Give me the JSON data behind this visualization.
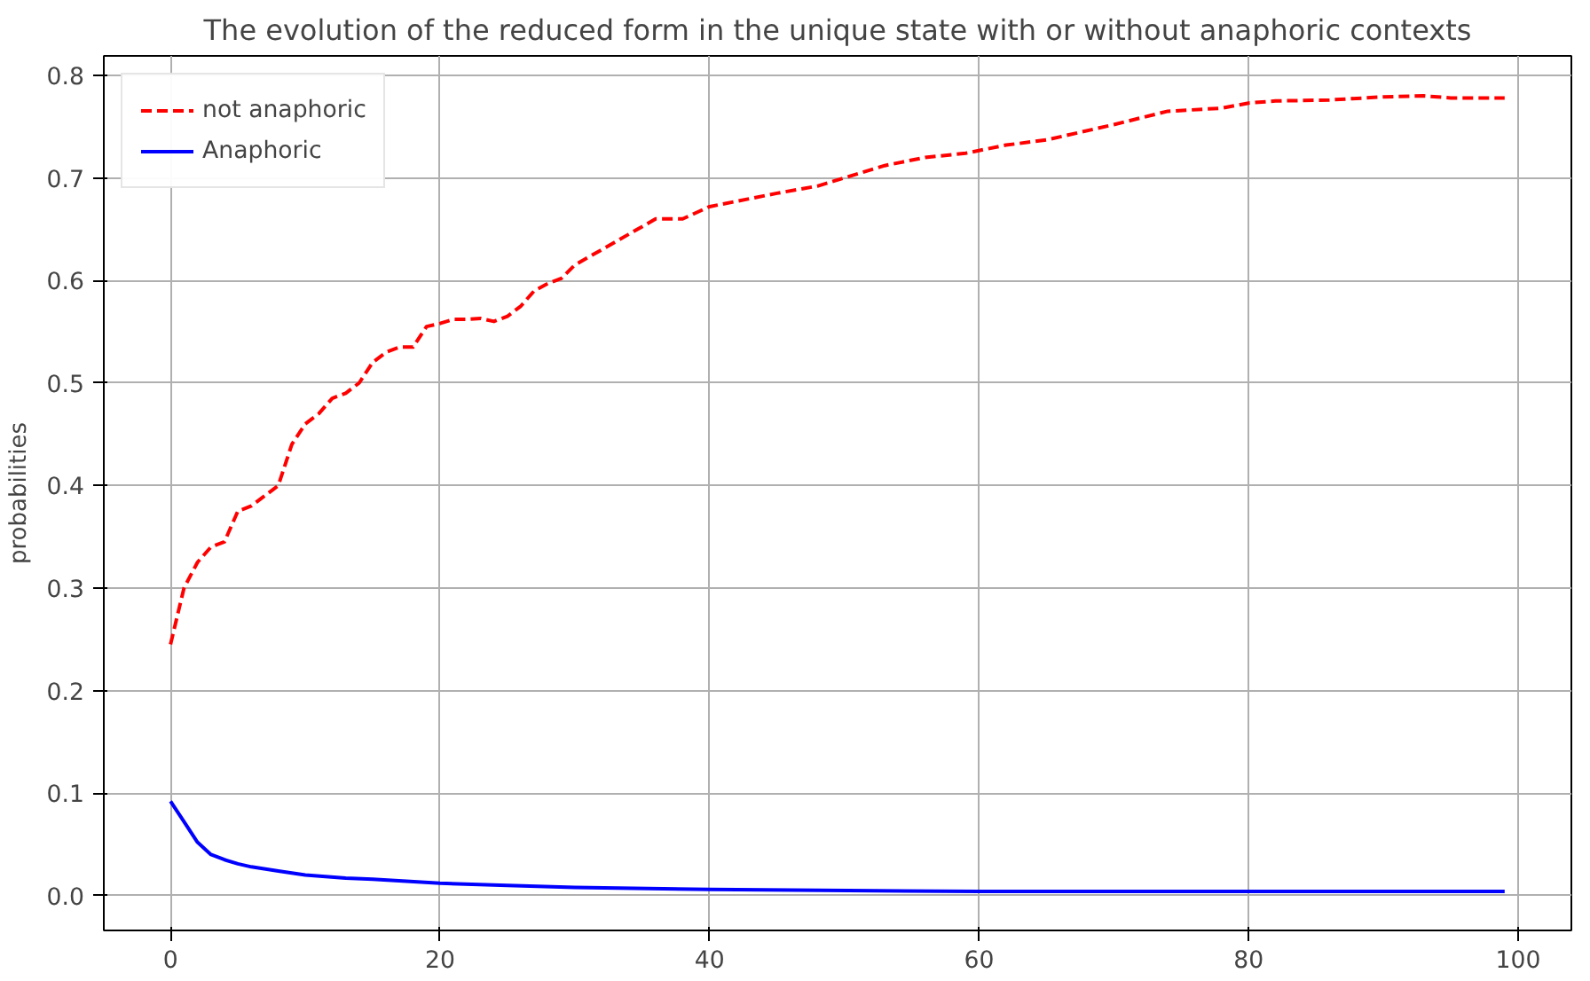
{
  "chart_data": {
    "type": "line",
    "title": "The evolution of the reduced form in the unique state with or without anaphoric contexts",
    "ylabel": "probabilities",
    "xlim": [
      -4.95,
      103.95
    ],
    "ylim": [
      -0.034,
      0.819
    ],
    "xticks": [
      0,
      20,
      40,
      60,
      80,
      100
    ],
    "yticks": [
      {
        "value": 0,
        "label": "0.0"
      },
      0.1,
      0.2,
      0.3,
      0.4,
      0.5,
      0.6,
      0.7,
      0.8
    ],
    "grid": true,
    "legend": "top left",
    "marker": "none",
    "series": [
      {
        "name": "not anaphoric",
        "color": "#ff0000",
        "line_style": "dashed",
        "x": [
          0,
          1,
          2,
          3,
          4,
          5,
          6,
          7,
          8,
          9,
          10,
          11,
          12,
          13,
          14,
          15,
          16,
          17,
          18,
          19,
          20,
          21,
          22,
          23,
          24,
          25,
          26,
          27,
          28,
          29,
          30,
          32,
          34,
          36,
          38,
          40,
          45,
          48,
          50,
          53,
          56,
          59,
          62,
          65,
          70,
          74,
          78,
          80,
          82,
          86,
          90,
          93,
          95,
          99
        ],
        "values": [
          0.245,
          0.3,
          0.325,
          0.34,
          0.345,
          0.375,
          0.38,
          0.39,
          0.4,
          0.44,
          0.46,
          0.47,
          0.485,
          0.49,
          0.5,
          0.52,
          0.53,
          0.535,
          0.535,
          0.555,
          0.558,
          0.562,
          0.562,
          0.563,
          0.56,
          0.565,
          0.575,
          0.59,
          0.597,
          0.602,
          0.615,
          0.63,
          0.645,
          0.66,
          0.66,
          0.672,
          0.685,
          0.692,
          0.7,
          0.712,
          0.72,
          0.724,
          0.732,
          0.737,
          0.752,
          0.765,
          0.768,
          0.773,
          0.775,
          0.776,
          0.779,
          0.78,
          0.778,
          0.778
        ]
      },
      {
        "name": "Anaphoric",
        "color": "#0000ff",
        "line_style": "solid",
        "x": [
          0,
          1,
          2,
          3,
          4,
          5,
          6,
          8,
          10,
          13,
          15,
          20,
          25,
          30,
          40,
          60,
          80,
          99
        ],
        "values": [
          0.092,
          0.072,
          0.052,
          0.04,
          0.035,
          0.031,
          0.028,
          0.024,
          0.02,
          0.017,
          0.016,
          0.012,
          0.01,
          0.008,
          0.006,
          0.004,
          0.004,
          0.004
        ]
      }
    ]
  }
}
